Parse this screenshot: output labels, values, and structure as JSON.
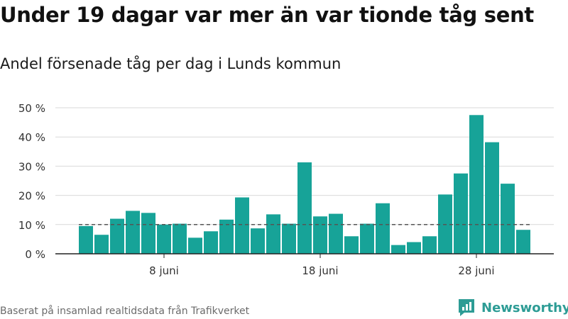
{
  "header": {
    "title": "Under 19 dagar var mer än var tionde tåg sent",
    "subtitle": "Andel försenade tåg per dag i Lunds kommun"
  },
  "footer": {
    "source": "Baserat på insamlad realtidsdata från Trafikverket",
    "brand": "Newsworthy",
    "brand_icon": "newsworthy-logo-icon"
  },
  "colors": {
    "bar": "#17a398",
    "reference_line": "#555555",
    "grid": "#d9d9d9",
    "brand": "#2d9c95"
  },
  "chart_data": {
    "type": "bar",
    "x": [
      "3 juni",
      "4 juni",
      "5 juni",
      "6 juni",
      "7 juni",
      "8 juni",
      "9 juni",
      "10 juni",
      "11 juni",
      "12 juni",
      "13 juni",
      "14 juni",
      "15 juni",
      "16 juni",
      "17 juni",
      "18 juni",
      "19 juni",
      "20 juni",
      "21 juni",
      "22 juni",
      "23 juni",
      "24 juni",
      "25 juni",
      "26 juni",
      "27 juni",
      "28 juni",
      "29 juni",
      "30 juni",
      "1 juli"
    ],
    "values": [
      9.5,
      6.5,
      12,
      14.7,
      14,
      10,
      10.3,
      5.5,
      7.7,
      11.7,
      19.3,
      8.7,
      13.5,
      10.3,
      31.3,
      12.8,
      13.7,
      6,
      10.3,
      17.3,
      3,
      4,
      6,
      20.3,
      27.5,
      47.5,
      38.2,
      24,
      8.2
    ],
    "xticks": [
      "8 juni",
      "18 juni",
      "28 juni"
    ],
    "yticks": [
      "0 %",
      "10 %",
      "20 %",
      "30 %",
      "40 %",
      "50 %"
    ],
    "ylim": [
      0,
      50
    ],
    "reference_line": 10,
    "grid": true,
    "xlabel": "",
    "ylabel": ""
  }
}
